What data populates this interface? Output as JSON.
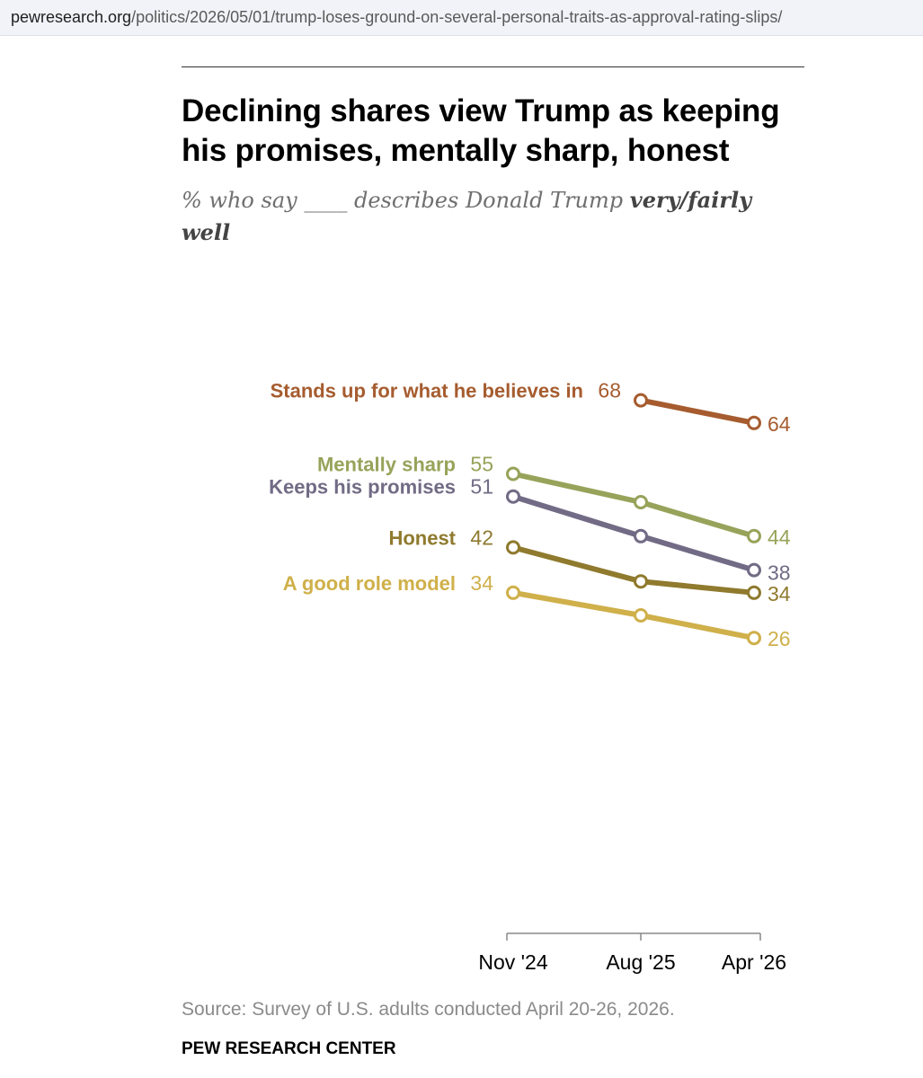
{
  "browser": {
    "url_domain": "pewresearch.org",
    "url_path": "/politics/2026/05/01/trump-loses-ground-on-several-personal-traits-as-approval-rating-slips/"
  },
  "title": "Declining shares view Trump as keeping his promises, mentally sharp, honest",
  "subtitle_regular": "% who say ____ describes Donald Trump ",
  "subtitle_bold": "very/fairly well",
  "source": "Source: Survey of U.S. adults conducted April 20-26, 2026.",
  "organization": "PEW RESEARCH CENTER",
  "chart_data": {
    "type": "line",
    "categories": [
      "Nov '24",
      "Aug '25",
      "Apr '26"
    ],
    "series": [
      {
        "name": "Stands up for what he believes in",
        "values": [
          null,
          68,
          64
        ],
        "color": "#a65c2f"
      },
      {
        "name": "Mentally sharp",
        "values": [
          55,
          50,
          44
        ],
        "color": "#97a35a"
      },
      {
        "name": "Keeps his promises",
        "values": [
          51,
          44,
          38
        ],
        "color": "#726b85"
      },
      {
        "name": "Honest",
        "values": [
          42,
          36,
          34
        ],
        "color": "#8f7a2e"
      },
      {
        "name": "A good role model",
        "values": [
          34,
          30,
          26
        ],
        "color": "#cfb04a"
      }
    ],
    "labeled_points": {
      "Stands up for what he believes in": [
        false,
        true,
        true
      ],
      "Mentally sharp": [
        true,
        false,
        true
      ],
      "Keeps his promises": [
        true,
        false,
        true
      ],
      "Honest": [
        true,
        false,
        true
      ],
      "A good role model": [
        true,
        false,
        true
      ]
    },
    "grid": false,
    "legend": "inline labels at series start"
  }
}
